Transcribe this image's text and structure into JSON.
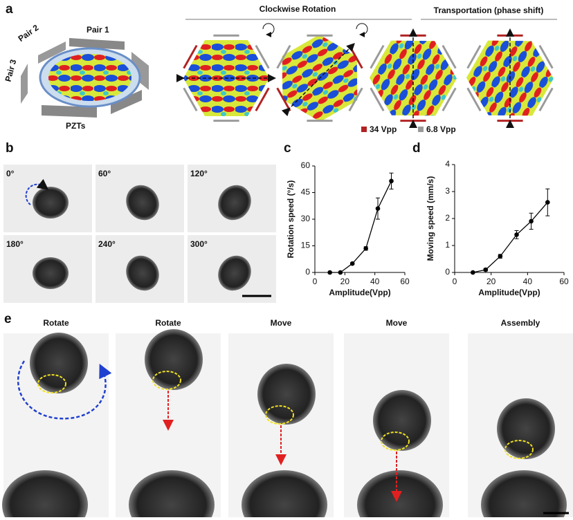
{
  "panels": {
    "a": {
      "label": "a",
      "pzt_labels": [
        "Pair 1",
        "Pair 2",
        "Pair 3",
        "PZTs"
      ],
      "rotation_title": "Clockwise Rotation",
      "transport_title": "Transportation (phase shift)",
      "legend": [
        {
          "name": "34 Vpp",
          "color": "#b22222"
        },
        {
          "name": "6.8 Vpp",
          "color": "#9a9a9a"
        }
      ]
    },
    "b": {
      "label": "b",
      "angles": [
        "0°",
        "60°",
        "120°",
        "180°",
        "240°",
        "300°"
      ]
    },
    "c": {
      "label": "c"
    },
    "d": {
      "label": "d"
    },
    "e": {
      "label": "e",
      "steps": [
        "Rotate",
        "Rotate",
        "Move",
        "Move",
        "Assembly"
      ]
    }
  },
  "chart_data": [
    {
      "type": "line",
      "x_label": "Amplitude(Vpp)",
      "y_label": "Rotation speed (°/s)",
      "x": [
        10,
        17,
        25,
        34,
        42,
        51
      ],
      "xlim": [
        0,
        60
      ],
      "xticks": [
        0,
        20,
        40,
        60
      ],
      "ylim": [
        0,
        60
      ],
      "yticks": [
        0,
        15,
        30,
        45,
        60
      ],
      "series": [
        {
          "color": "#000000",
          "values": [
            0,
            0,
            5,
            13.5,
            36,
            51.5
          ],
          "errors": [
            0,
            0,
            0.5,
            1,
            6,
            4.5
          ]
        }
      ]
    },
    {
      "type": "line",
      "x_label": "Amplitude(Vpp)",
      "y_label": "Moving speed (mm/s)",
      "x": [
        10,
        17,
        25,
        34,
        42,
        51
      ],
      "xlim": [
        0,
        60
      ],
      "xticks": [
        0,
        20,
        40,
        60
      ],
      "ylim": [
        0,
        4
      ],
      "yticks": [
        0,
        1,
        2,
        3,
        4
      ],
      "series": [
        {
          "color": "#000000",
          "values": [
            0,
            0.1,
            0.6,
            1.4,
            1.9,
            2.6
          ],
          "errors": [
            0,
            0.05,
            0.07,
            0.15,
            0.3,
            0.5
          ]
        }
      ]
    }
  ]
}
